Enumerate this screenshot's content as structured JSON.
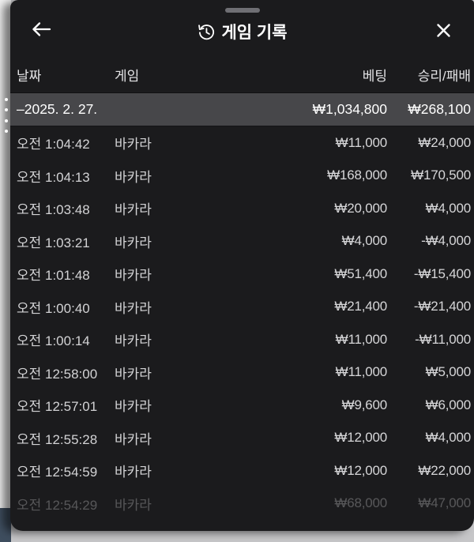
{
  "sheet": {
    "title": "게임 기록",
    "nav": {
      "back_icon": "arrow-left",
      "close_icon": "x",
      "history_icon": "clock-arrow-circlepath",
      "grabber": "drag-handle"
    },
    "columns": {
      "date": "날짜",
      "game": "게임",
      "bet": "베팅",
      "winloss": "승리/패배"
    },
    "summary": {
      "date_range": "–2025. 2. 27.",
      "bet_total": "₩1,034,800",
      "winloss_total": "₩268,100"
    },
    "rows": [
      {
        "time": "오전 1:04:42",
        "game": "바카라",
        "bet": "₩11,000",
        "winloss": "₩24,000",
        "faded": false
      },
      {
        "time": "오전 1:04:13",
        "game": "바카라",
        "bet": "₩168,000",
        "winloss": "₩170,500",
        "faded": false
      },
      {
        "time": "오전 1:03:48",
        "game": "바카라",
        "bet": "₩20,000",
        "winloss": "₩4,000",
        "faded": false
      },
      {
        "time": "오전 1:03:21",
        "game": "바카라",
        "bet": "₩4,000",
        "winloss": "-₩4,000",
        "faded": false
      },
      {
        "time": "오전 1:01:48",
        "game": "바카라",
        "bet": "₩51,400",
        "winloss": "-₩15,400",
        "faded": false
      },
      {
        "time": "오전 1:00:40",
        "game": "바카라",
        "bet": "₩21,400",
        "winloss": "-₩21,400",
        "faded": false
      },
      {
        "time": "오전 1:00:14",
        "game": "바카라",
        "bet": "₩11,000",
        "winloss": "-₩11,000",
        "faded": false
      },
      {
        "time": "오전 12:58:00",
        "game": "바카라",
        "bet": "₩11,000",
        "winloss": "₩5,000",
        "faded": false
      },
      {
        "time": "오전 12:57:01",
        "game": "바카라",
        "bet": "₩9,600",
        "winloss": "₩6,000",
        "faded": false
      },
      {
        "time": "오전 12:55:28",
        "game": "바카라",
        "bet": "₩12,000",
        "winloss": "₩4,000",
        "faded": false
      },
      {
        "time": "오전 12:54:59",
        "game": "바카라",
        "bet": "₩12,000",
        "winloss": "₩22,000",
        "faded": false
      },
      {
        "time": "오전 12:54:29",
        "game": "바카라",
        "bet": "₩68,000",
        "winloss": "₩47,000",
        "faded": true
      }
    ]
  },
  "colors": {
    "sheet-bg": "#1b1b1d",
    "summary-bg": "#47474a",
    "row-text": "#d3d3d5",
    "amt-text": "#d6d6d8",
    "header-text": "#e3e3e5",
    "bottom-strip": "#c6c6c8",
    "left-strip": "#f0f0f0",
    "slate": "#3e4d5e",
    "grabber": "#6f6f74"
  }
}
